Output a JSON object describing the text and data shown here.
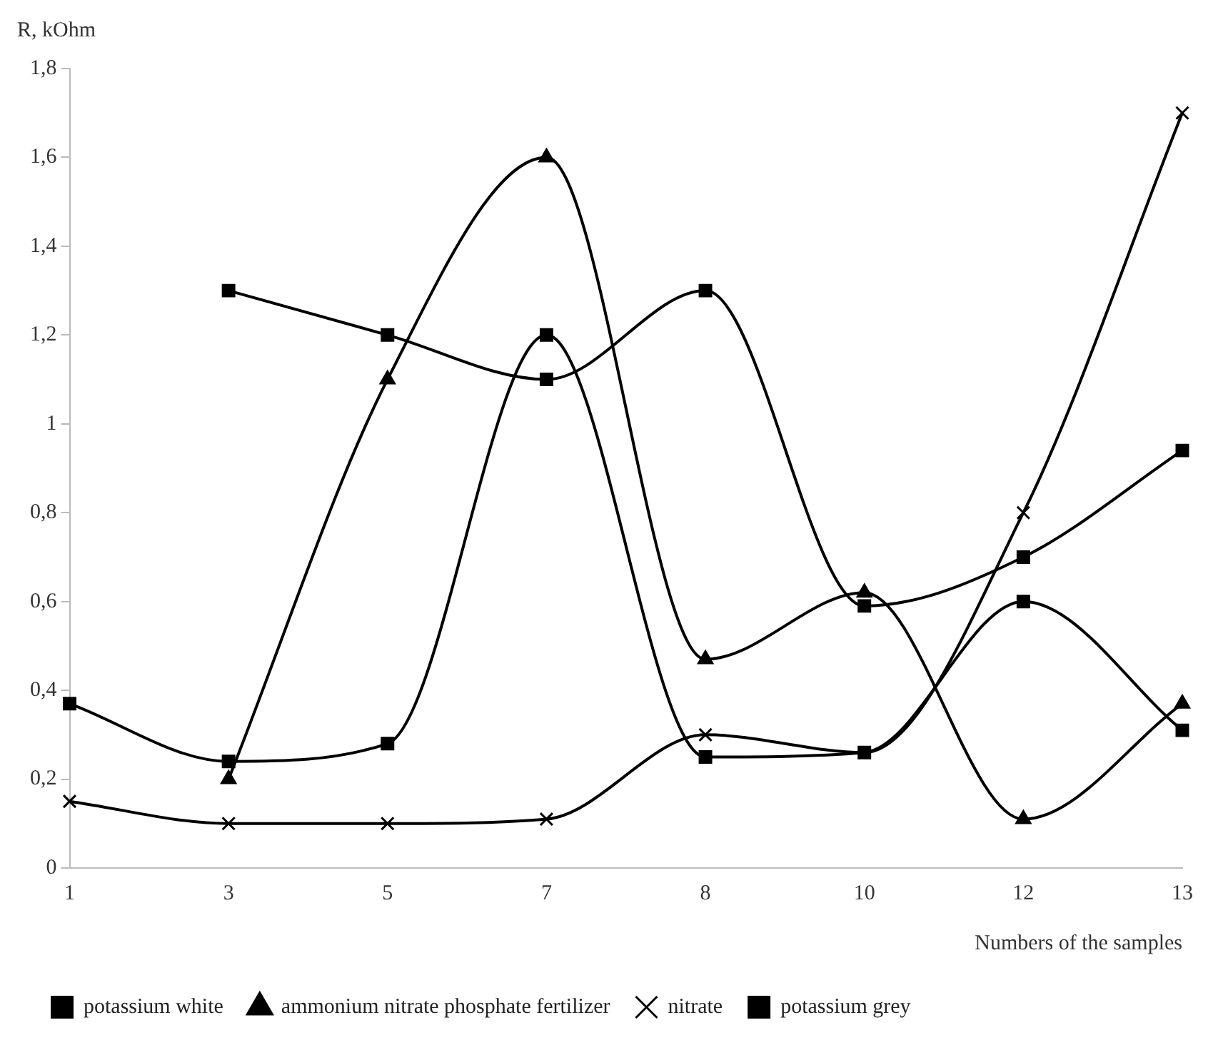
{
  "chart_data": {
    "type": "line",
    "xlabel": "Numbers of the samples",
    "ylabel": "R, kOhm",
    "categories": [
      "1",
      "3",
      "5",
      "7",
      "8",
      "10",
      "12",
      "13"
    ],
    "ylim": [
      0,
      1.8
    ],
    "yticks": [
      0,
      {
        "value": 0.2,
        "label": "0,2"
      },
      {
        "value": 0.4,
        "label": "0,4"
      },
      {
        "value": 0.6,
        "label": "0,6"
      },
      {
        "value": 0.8,
        "label": "0,8"
      },
      1,
      {
        "value": 1.2,
        "label": "1,2"
      },
      {
        "value": 1.4,
        "label": "1,4"
      },
      {
        "value": 1.6,
        "label": "1,6"
      },
      {
        "value": 1.8,
        "label": "1,8"
      }
    ],
    "grid": false,
    "legend": "bottom",
    "line_style": "solid",
    "series": [
      {
        "name": "potassium white",
        "color": "#000000",
        "marker": "square",
        "values": [
          0.37,
          0.24,
          0.28,
          1.2,
          0.25,
          0.26,
          0.6,
          0.31
        ]
      },
      {
        "name": "ammonium nitrate phosphate fertilizer",
        "color": "#000000",
        "marker": "triangle",
        "values": [
          null,
          0.2,
          1.1,
          1.6,
          0.47,
          0.62,
          0.11,
          0.37
        ]
      },
      {
        "name": "nitrate",
        "color": "#000000",
        "marker": "cross",
        "values": [
          0.15,
          0.1,
          0.1,
          0.11,
          0.3,
          0.26,
          0.8,
          1.7
        ]
      },
      {
        "name": "potassium grey",
        "color": "#000000",
        "marker": "square",
        "values": [
          null,
          1.3,
          1.2,
          1.1,
          1.3,
          0.59,
          0.7,
          0.94
        ]
      }
    ]
  }
}
